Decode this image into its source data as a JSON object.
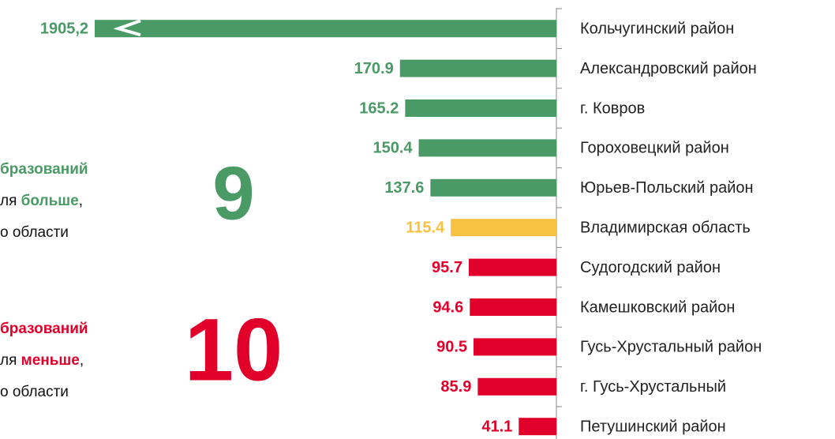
{
  "chart_data": {
    "type": "bar",
    "orientation": "horizontal",
    "categories": [
      "Кольчугинский район",
      "Александровский район",
      "г. Ковров",
      "Гороховецкий район",
      "Юрьев-Польский район",
      "Владимирская область",
      "Судогодский район",
      "Камешковский район",
      "Гусь-Хрустальный район",
      "г. Гусь-Хрустальный",
      "Петушинский район"
    ],
    "values": [
      1905.2,
      170.9,
      165.2,
      150.4,
      137.6,
      115.4,
      95.7,
      94.6,
      90.5,
      85.9,
      41.1
    ],
    "value_labels": [
      "1905,2",
      "170.9",
      "165.2",
      "150.4",
      "137.6",
      "115.4",
      "95.7",
      "94.6",
      "90.5",
      "85.9",
      "41.1"
    ],
    "colors": [
      "#4a9a65",
      "#4a9a65",
      "#4a9a65",
      "#4a9a65",
      "#4a9a65",
      "#f9c142",
      "#e1002a",
      "#e1002a",
      "#e1002a",
      "#e1002a",
      "#e1002a"
    ]
  },
  "annotations": [
    {
      "count": 9,
      "color": "#4a9a65",
      "lines": [
        [
          {
            "text": "бразований",
            "bold": true,
            "color": "#4a9a65"
          }
        ],
        [
          {
            "text": "ля ",
            "bold": false,
            "color": "#111111"
          },
          {
            "text": "больше",
            "bold": true,
            "color": "#4a9a65"
          },
          {
            "text": ",",
            "bold": false,
            "color": "#111111"
          }
        ],
        [
          {
            "text": "о области",
            "bold": false,
            "color": "#111111"
          }
        ]
      ]
    },
    {
      "count": 10,
      "color": "#e1002a",
      "lines": [
        [
          {
            "text": "бразований",
            "bold": true,
            "color": "#e1002a"
          }
        ],
        [
          {
            "text": "ля ",
            "bold": false,
            "color": "#111111"
          },
          {
            "text": "меньше",
            "bold": true,
            "color": "#e1002a"
          },
          {
            "text": ",",
            "bold": false,
            "color": "#111111"
          }
        ],
        [
          {
            "text": "о области",
            "bold": false,
            "color": "#111111"
          }
        ]
      ]
    }
  ]
}
